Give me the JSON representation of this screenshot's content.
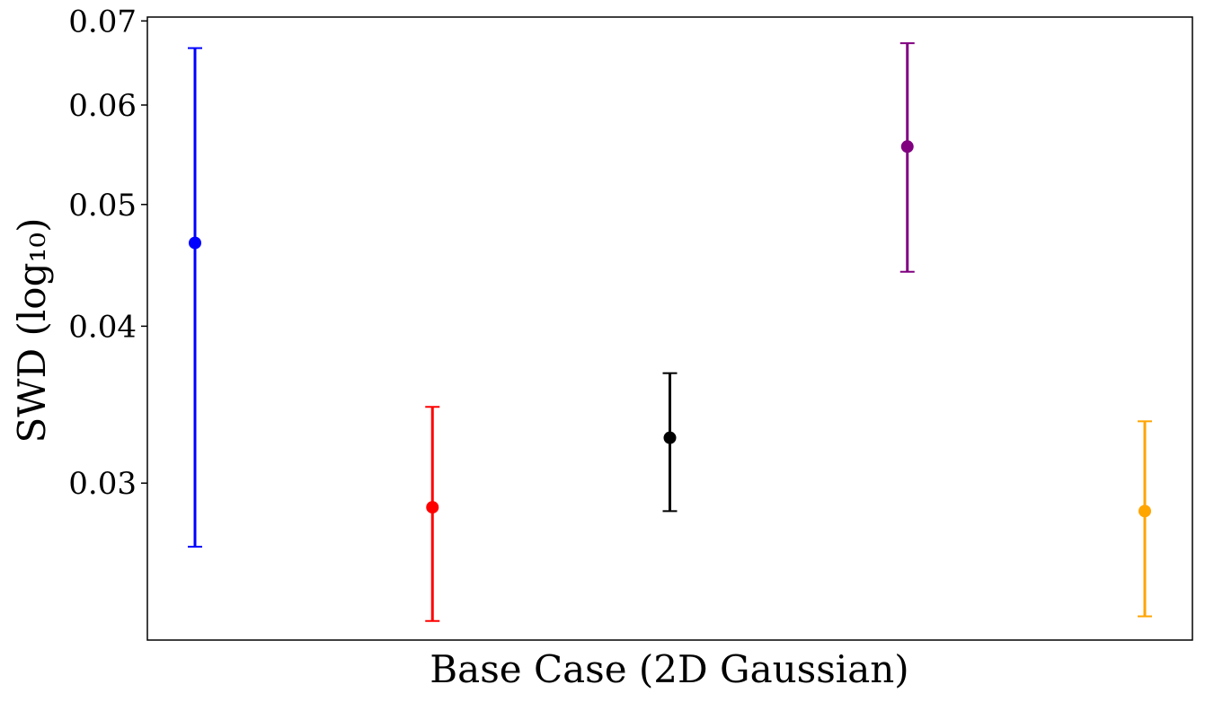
{
  "chart_data": {
    "type": "scatter",
    "xlabel": "Base Case (2D Gaussian)",
    "ylabel": "SWD (log₁₀)",
    "yscale": "log",
    "ylim": [
      0.0225,
      0.0705
    ],
    "yticks": [
      0.03,
      0.04,
      0.05,
      0.06,
      0.07
    ],
    "ytick_labels": [
      "0.03",
      "0.04",
      "0.05",
      "0.06",
      "0.07"
    ],
    "grid": false,
    "legend": "none",
    "series": [
      {
        "color": "#0000ff",
        "value": 0.0466,
        "lower": 0.0267,
        "upper": 0.0666
      },
      {
        "color": "#ff0000",
        "value": 0.0287,
        "lower": 0.0233,
        "upper": 0.0345
      },
      {
        "color": "#000000",
        "value": 0.0326,
        "lower": 0.0285,
        "upper": 0.0367
      },
      {
        "color": "#800080",
        "value": 0.0556,
        "lower": 0.0442,
        "upper": 0.0672
      },
      {
        "color": "#ffa500",
        "value": 0.0285,
        "lower": 0.0235,
        "upper": 0.0336
      }
    ]
  }
}
